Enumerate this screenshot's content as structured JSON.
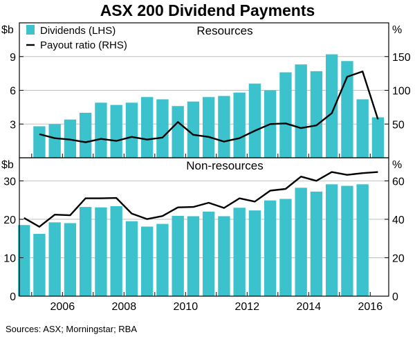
{
  "chart_data": {
    "type": "bar",
    "title": "ASX 200 Dividend Payments",
    "source": "Sources:   ASX; Morningstar; RBA",
    "legend": {
      "placement": "top-left",
      "entries": [
        "Dividends (LHS)",
        "Payout ratio (RHS)"
      ]
    },
    "colors": {
      "bars": "#3cc2cc",
      "line": "#000000",
      "axis": "#000000",
      "grid": "#bfbfbf"
    },
    "x_ticks": [
      "2006",
      "2008",
      "2010",
      "2012",
      "2014",
      "2016"
    ],
    "x_tick_values": [
      2006,
      2008,
      2010,
      2012,
      2014,
      2016
    ],
    "xlim": [
      2004.6,
      2016.6
    ],
    "x": [
      2004.75,
      2005.25,
      2005.75,
      2006.25,
      2006.75,
      2007.25,
      2007.75,
      2008.25,
      2008.75,
      2009.25,
      2009.75,
      2010.25,
      2010.75,
      2011.25,
      2011.75,
      2012.25,
      2012.75,
      2013.25,
      2013.75,
      2014.25,
      2014.75,
      2015.25,
      2015.75,
      2016.25
    ],
    "panels": [
      {
        "name": "Resources",
        "left_unit": "$b",
        "right_unit": "%",
        "left_ylim": [
          0,
          12
        ],
        "right_ylim": [
          0,
          200
        ],
        "left_ticks": [
          "3",
          "6",
          "9"
        ],
        "left_tick_values": [
          3,
          6,
          9
        ],
        "right_ticks": [
          "50",
          "100",
          "150"
        ],
        "right_tick_values": [
          50,
          100,
          150
        ],
        "series": [
          {
            "name": "Dividends (LHS)",
            "axis": "left",
            "kind": "bar",
            "values": [
              null,
              2.8,
              3.0,
              3.4,
              4.0,
              4.9,
              4.7,
              4.9,
              5.4,
              5.2,
              4.6,
              5.0,
              5.4,
              5.5,
              5.8,
              6.6,
              6.0,
              7.6,
              8.3,
              7.7,
              9.2,
              8.6,
              5.2,
              3.6
            ]
          },
          {
            "name": "Payout ratio (RHS)",
            "axis": "right",
            "kind": "line",
            "values": [
              null,
              35,
              29,
              27,
              23,
              28,
              25,
              31,
              27,
              30,
              53,
              34,
              31,
              24,
              29,
              40,
              50,
              51,
              44,
              48,
              66,
              120,
              128,
              57
            ]
          }
        ]
      },
      {
        "name": "Non-resources",
        "left_unit": "$b",
        "right_unit": "%",
        "left_ylim": [
          0,
          36
        ],
        "right_ylim": [
          0,
          72
        ],
        "left_ticks": [
          "0",
          "10",
          "20",
          "30"
        ],
        "left_tick_values": [
          0,
          10,
          20,
          30
        ],
        "right_ticks": [
          "0",
          "20",
          "40",
          "60"
        ],
        "right_tick_values": [
          0,
          20,
          40,
          60
        ],
        "series": [
          {
            "name": "Dividends (LHS)",
            "axis": "left",
            "kind": "bar",
            "values": [
              18.5,
              16.2,
              19.2,
              19.0,
              23.2,
              23.1,
              23.4,
              19.5,
              18.1,
              18.8,
              20.9,
              20.8,
              22.0,
              20.8,
              23.0,
              22.3,
              24.9,
              25.3,
              28.2,
              27.2,
              29.1,
              28.7,
              29.1,
              null
            ]
          },
          {
            "name": "Payout ratio (RHS)",
            "axis": "right",
            "kind": "line",
            "values": [
              40.7,
              36.1,
              42.4,
              42.1,
              50.9,
              50.9,
              51.1,
              43.0,
              40.1,
              41.7,
              46.2,
              46.4,
              48.6,
              45.9,
              50.9,
              49.2,
              54.9,
              55.8,
              62.2,
              60.0,
              64.6,
              63.1,
              64.0,
              64.6
            ]
          }
        ]
      }
    ]
  }
}
